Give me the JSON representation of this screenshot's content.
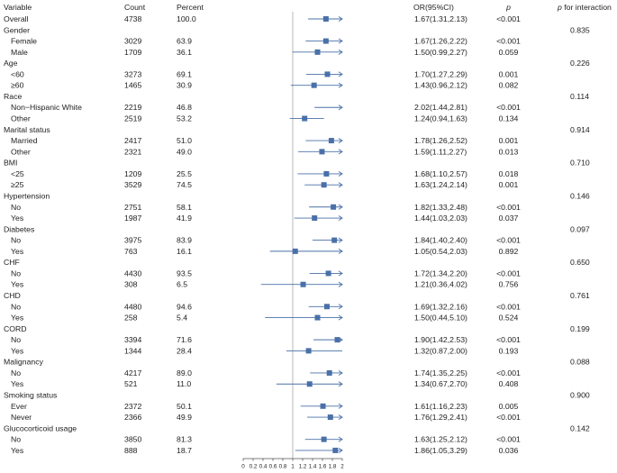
{
  "chart_data": {
    "type": "scatter",
    "xlim": [
      0,
      2
    ],
    "reference_value": 1,
    "x_ticks": [
      0,
      0.2,
      0.4,
      0.6,
      0.8,
      1,
      1.2,
      1.4,
      1.6,
      1.8,
      2
    ],
    "x_tick_labels": [
      "0",
      "0.2",
      "0.4",
      "0.6",
      "0.8",
      "1",
      "1.2",
      "1.4",
      "1.6",
      "1.8",
      "2"
    ],
    "columns": {
      "variable": "Variable",
      "count": "Count",
      "percent": "Percent",
      "or_ci": "OR(95%CI)",
      "p": "p",
      "interaction_p": "p",
      "interaction_rest": "for interaction"
    },
    "marker_color": "#4a70a8",
    "text_color": "#222222",
    "axis_color": "#555555",
    "reference_line_color": "#a6a6a6",
    "rows": [
      {
        "kind": "total",
        "label": "Overall",
        "count": 4738,
        "percent": "100.0",
        "or_ci": "1.67(1.31,2.13)",
        "or": 1.67,
        "lower": 1.31,
        "upper": 2.13,
        "p": "<0.001"
      },
      {
        "kind": "header",
        "label": "Gender",
        "p_interaction": "0.835"
      },
      {
        "kind": "item",
        "label": "Female",
        "count": 3029,
        "percent": "63.9",
        "or_ci": "1.67(1.26,2.22)",
        "or": 1.67,
        "lower": 1.26,
        "upper": 2.22,
        "p": "<0.001"
      },
      {
        "kind": "item",
        "label": "Male",
        "count": 1709,
        "percent": "36.1",
        "or_ci": "1.50(0.99,2.27)",
        "or": 1.5,
        "lower": 0.99,
        "upper": 2.27,
        "p": "0.059"
      },
      {
        "kind": "header",
        "label": "Age",
        "p_interaction": "0.226"
      },
      {
        "kind": "item",
        "label": "<60",
        "count": 3273,
        "percent": "69.1",
        "or_ci": "1.70(1.27,2.29)",
        "or": 1.7,
        "lower": 1.27,
        "upper": 2.29,
        "p": "0.001"
      },
      {
        "kind": "item",
        "label": "≥60",
        "count": 1465,
        "percent": "30.9",
        "or_ci": "1.43(0.96,2.12)",
        "or": 1.43,
        "lower": 0.96,
        "upper": 2.12,
        "p": "0.082"
      },
      {
        "kind": "header",
        "label": "Race",
        "p_interaction": "0.114"
      },
      {
        "kind": "item",
        "label": "Non−Hispanic White",
        "count": 2219,
        "percent": "46.8",
        "or_ci": "2.02(1.44,2.81)",
        "or": 2.02,
        "lower": 1.44,
        "upper": 2.81,
        "p": "<0.001"
      },
      {
        "kind": "item",
        "label": "Other",
        "count": 2519,
        "percent": "53.2",
        "or_ci": "1.24(0.94,1.63)",
        "or": 1.24,
        "lower": 0.94,
        "upper": 1.63,
        "p": "0.134"
      },
      {
        "kind": "header",
        "label": "Marital status",
        "p_interaction": "0.914"
      },
      {
        "kind": "item",
        "label": "Married",
        "count": 2417,
        "percent": "51.0",
        "or_ci": "1.78(1.26,2.52)",
        "or": 1.78,
        "lower": 1.26,
        "upper": 2.52,
        "p": "0.001"
      },
      {
        "kind": "item",
        "label": "Other",
        "count": 2321,
        "percent": "49.0",
        "or_ci": "1.59(1.11,2.27)",
        "or": 1.59,
        "lower": 1.11,
        "upper": 2.27,
        "p": "0.013"
      },
      {
        "kind": "header",
        "label": "BMI",
        "p_interaction": "0.710"
      },
      {
        "kind": "item",
        "label": "<25",
        "count": 1209,
        "percent": "25.5",
        "or_ci": "1.68(1.10,2.57)",
        "or": 1.68,
        "lower": 1.1,
        "upper": 2.57,
        "p": "0.018"
      },
      {
        "kind": "item",
        "label": "≥25",
        "count": 3529,
        "percent": "74.5",
        "or_ci": "1.63(1.24,2.14)",
        "or": 1.63,
        "lower": 1.24,
        "upper": 2.14,
        "p": "0.001"
      },
      {
        "kind": "header",
        "label": "Hypertension",
        "p_interaction": "0.146"
      },
      {
        "kind": "item",
        "label": "No",
        "count": 2751,
        "percent": "58.1",
        "or_ci": "1.82(1.33,2.48)",
        "or": 1.82,
        "lower": 1.33,
        "upper": 2.48,
        "p": "<0.001"
      },
      {
        "kind": "item",
        "label": "Yes",
        "count": 1987,
        "percent": "41.9",
        "or_ci": "1.44(1.03,2.03)",
        "or": 1.44,
        "lower": 1.03,
        "upper": 2.03,
        "p": "0.037"
      },
      {
        "kind": "header",
        "label": "Diabetes",
        "p_interaction": "0.097"
      },
      {
        "kind": "item",
        "label": "No",
        "count": 3975,
        "percent": "83.9",
        "or_ci": "1.84(1.40,2.40)",
        "or": 1.84,
        "lower": 1.4,
        "upper": 2.4,
        "p": "<0.001"
      },
      {
        "kind": "item",
        "label": "Yes",
        "count": 763,
        "percent": "16.1",
        "or_ci": "1.05(0.54,2.03)",
        "or": 1.05,
        "lower": 0.54,
        "upper": 2.03,
        "p": "0.892"
      },
      {
        "kind": "header",
        "label": "CHF",
        "p_interaction": "0.650"
      },
      {
        "kind": "item",
        "label": "No",
        "count": 4430,
        "percent": "93.5",
        "or_ci": "1.72(1.34,2.20)",
        "or": 1.72,
        "lower": 1.34,
        "upper": 2.2,
        "p": "<0.001"
      },
      {
        "kind": "item",
        "label": "Yes",
        "count": 308,
        "percent": "6.5",
        "or_ci": "1.21(0.36,4.02)",
        "or": 1.21,
        "lower": 0.36,
        "upper": 4.02,
        "p": "0.756"
      },
      {
        "kind": "header",
        "label": "CHD",
        "p_interaction": "0.761"
      },
      {
        "kind": "item",
        "label": "No",
        "count": 4480,
        "percent": "94.6",
        "or_ci": "1.69(1.32,2.16)",
        "or": 1.69,
        "lower": 1.32,
        "upper": 2.16,
        "p": "<0.001"
      },
      {
        "kind": "item",
        "label": "Yes",
        "count": 258,
        "percent": "5.4",
        "or_ci": "1.50(0.44,5.10)",
        "or": 1.5,
        "lower": 0.44,
        "upper": 5.1,
        "p": "0.524"
      },
      {
        "kind": "header",
        "label": "CORD",
        "p_interaction": "0.199"
      },
      {
        "kind": "item",
        "label": "No",
        "count": 3394,
        "percent": "71.6",
        "or_ci": "1.90(1.42,2.53)",
        "or": 1.9,
        "lower": 1.42,
        "upper": 2.53,
        "p": "<0.001"
      },
      {
        "kind": "item",
        "label": "Yes",
        "count": 1344,
        "percent": "28.4",
        "or_ci": "1.32(0.87,2.00)",
        "or": 1.32,
        "lower": 0.87,
        "upper": 2.0,
        "p": "0.193"
      },
      {
        "kind": "header",
        "label": "Malignancy",
        "p_interaction": "0.088"
      },
      {
        "kind": "item",
        "label": "No",
        "count": 4217,
        "percent": "89.0",
        "or_ci": "1.74(1.35,2.25)",
        "or": 1.74,
        "lower": 1.35,
        "upper": 2.25,
        "p": "<0.001"
      },
      {
        "kind": "item",
        "label": "Yes",
        "count": 521,
        "percent": "11.0",
        "or_ci": "1.34(0.67,2.70)",
        "or": 1.34,
        "lower": 0.67,
        "upper": 2.7,
        "p": "0.408"
      },
      {
        "kind": "header",
        "label": "Smoking status",
        "p_interaction": "0.900"
      },
      {
        "kind": "item",
        "label": "Ever",
        "count": 2372,
        "percent": "50.1",
        "or_ci": "1.61(1.16,2.23)",
        "or": 1.61,
        "lower": 1.16,
        "upper": 2.23,
        "p": "0.005"
      },
      {
        "kind": "item",
        "label": "Never",
        "count": 2366,
        "percent": "49.9",
        "or_ci": "1.76(1.29,2.41)",
        "or": 1.76,
        "lower": 1.29,
        "upper": 2.41,
        "p": "<0.001"
      },
      {
        "kind": "header",
        "label": "Glucocorticoid usage",
        "p_interaction": "0.142"
      },
      {
        "kind": "item",
        "label": "No",
        "count": 3850,
        "percent": "81.3",
        "or_ci": "1.63(1.25,2.12)",
        "or": 1.63,
        "lower": 1.25,
        "upper": 2.12,
        "p": "<0.001"
      },
      {
        "kind": "item",
        "label": "Yes",
        "count": 888,
        "percent": "18.7",
        "or_ci": "1.86(1.05,3.29)",
        "or": 1.86,
        "lower": 1.05,
        "upper": 3.29,
        "p": "0.036"
      }
    ]
  }
}
